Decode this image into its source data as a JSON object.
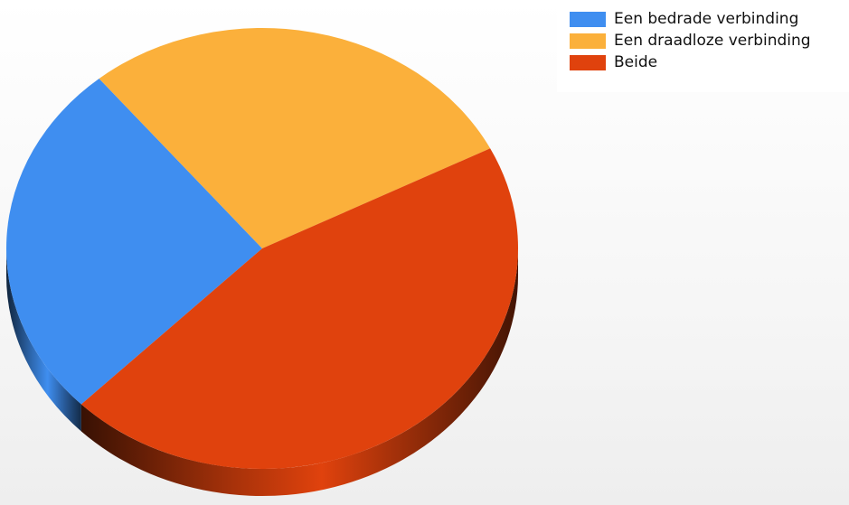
{
  "chart_data": {
    "type": "pie",
    "title": "",
    "categories": [
      "Een bedrade verbinding",
      "Een draadloze verbinding",
      "Beide"
    ],
    "values": [
      26.5,
      28.5,
      45.0
    ],
    "colors": [
      "#3f8ef0",
      "#fbb03b",
      "#e0420d"
    ],
    "legend_position": "top-right",
    "style": "3d-tilted"
  },
  "legend": {
    "items": [
      {
        "label": "Een bedrade verbinding",
        "color": "#3f8ef0"
      },
      {
        "label": "Een draadloze verbinding",
        "color": "#fbb03b"
      },
      {
        "label": "Beide",
        "color": "#e0420d"
      }
    ]
  }
}
